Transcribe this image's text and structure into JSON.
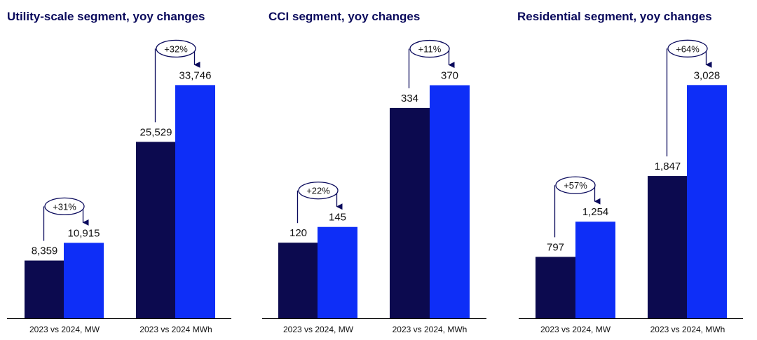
{
  "colors": {
    "bar_2023": "#0c0a4f",
    "bar_2024": "#0e2ef7",
    "title": "#0a0a5c",
    "arrow": "#0a0a5c",
    "axis": "#000000"
  },
  "chart_data": [
    {
      "type": "bar",
      "title": "Utility-scale segment, yoy changes",
      "categories": [
        "2023 vs 2024, MW",
        "2023 vs 2024 MWh"
      ],
      "series": [
        {
          "values": [
            8359,
            25529
          ]
        },
        {
          "values": [
            10915,
            33746
          ]
        }
      ],
      "value_labels": [
        [
          "8,359",
          "25,529"
        ],
        [
          "10,915",
          "33,746"
        ]
      ],
      "changes": [
        "+31%",
        "+32%"
      ],
      "ylim": [
        0,
        35000
      ]
    },
    {
      "type": "bar",
      "title": "CCI segment, yoy changes",
      "categories": [
        "2023 vs 2024, MW",
        "2023 vs 2024, MWh"
      ],
      "series": [
        {
          "values": [
            120,
            334
          ]
        },
        {
          "values": [
            145,
            370
          ]
        }
      ],
      "value_labels": [
        [
          "120",
          "334"
        ],
        [
          "145",
          "370"
        ]
      ],
      "changes": [
        "+22%",
        "+11%"
      ],
      "ylim": [
        0,
        384
      ]
    },
    {
      "type": "bar",
      "title": "Residential segment, yoy changes",
      "categories": [
        "2023 vs 2024, MW",
        "2023 vs 2024, MWh"
      ],
      "series": [
        {
          "values": [
            797,
            1847
          ]
        },
        {
          "values": [
            1254,
            3028
          ]
        }
      ],
      "value_labels": [
        [
          "797",
          "1,847"
        ],
        [
          "1,254",
          "3,028"
        ]
      ],
      "changes": [
        "+57%",
        "+64%"
      ],
      "ylim": [
        0,
        3140
      ]
    }
  ]
}
